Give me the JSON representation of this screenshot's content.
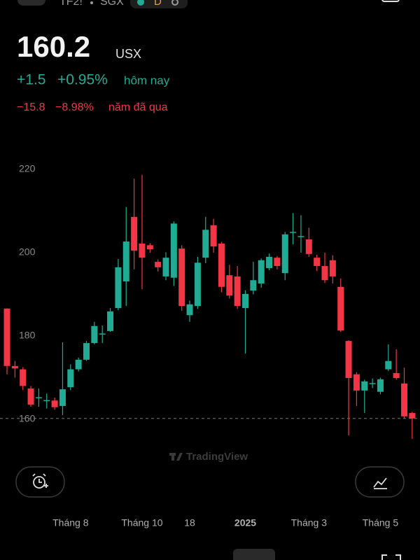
{
  "header": {
    "symbol": "TF2!",
    "exchange": "SGX",
    "interval": "D",
    "price": 160.2,
    "currency": "USX",
    "change_today": "+1.5",
    "change_today_pct": "+0.95%",
    "today_label": "hôm nay",
    "change_year": "−15.8",
    "change_year_pct": "−8.98%",
    "year_label": "năm đã qua"
  },
  "watermark": "TradingView",
  "chart_data": {
    "type": "candlestick",
    "categories": [
      null,
      null,
      null,
      null,
      null,
      null,
      null,
      null,
      "Tháng 8",
      null,
      null,
      null,
      null,
      null,
      null,
      null,
      null,
      "Tháng 10",
      null,
      null,
      null,
      null,
      null,
      "18",
      null,
      null,
      null,
      null,
      null,
      null,
      "2025",
      null,
      null,
      null,
      null,
      null,
      null,
      null,
      "Tháng 3",
      null,
      null,
      null,
      null,
      null,
      null,
      null,
      null,
      "Tháng 5",
      null,
      null,
      null,
      null
    ],
    "open": [
      186.6,
      172.8,
      172,
      167.4,
      165.2,
      164.6,
      164.5,
      163.2,
      167.7,
      172,
      174.3,
      178.3,
      180.5,
      181.2,
      186.7,
      193.1,
      208.6,
      202.2,
      201.8,
      197.8,
      194.3,
      194,
      201,
      185,
      187.2,
      198.8,
      206.6,
      202.2,
      194.6,
      194.3,
      186.7,
      190.9,
      192.6,
      196.3,
      198.8,
      195.1,
      204.9,
      204,
      203.2,
      198.8,
      196.8,
      198.2,
      191.8,
      178.8,
      170.8,
      166.9,
      168.6,
      166.6,
      172,
      171.1,
      168.6,
      161.5
    ],
    "high": [
      186.6,
      174,
      172.5,
      168,
      167.4,
      166.2,
      165.2,
      178.5,
      173.2,
      174.8,
      178.8,
      183.4,
      182.5,
      186.7,
      198.5,
      211,
      217.8,
      218.7,
      202.3,
      198.4,
      200.1,
      207.5,
      201.8,
      188.5,
      199,
      208.6,
      208.1,
      202.6,
      197.1,
      196.8,
      191,
      197.8,
      198.6,
      199.8,
      199.2,
      205,
      209.5,
      209,
      206,
      199.5,
      200,
      199.4,
      193.8,
      179,
      171.3,
      169.5,
      169.8,
      170,
      178,
      176.8,
      172.4,
      161.8
    ],
    "low": [
      170.8,
      170,
      167,
      163,
      163,
      162.6,
      162.3,
      161,
      167,
      171.5,
      174,
      178,
      178.3,
      181,
      186.2,
      187.2,
      196,
      191.2,
      200,
      195.5,
      193.4,
      192,
      186,
      183.4,
      186.5,
      197.5,
      200,
      190.5,
      189,
      186.5,
      175.8,
      190,
      191.6,
      195.8,
      196,
      193.4,
      202,
      200,
      199,
      195.6,
      192.7,
      192.6,
      181,
      156.1,
      163.2,
      161.5,
      167.5,
      166,
      171.6,
      169.5,
      160.2,
      155.3
    ],
    "close": [
      172.8,
      172.2,
      168,
      163.5,
      165.3,
      164.6,
      162.9,
      167.2,
      172,
      174.3,
      178.3,
      182.4,
      180.6,
      185.9,
      196.5,
      202.7,
      200.5,
      198.8,
      200.8,
      196.5,
      198.8,
      207,
      187.2,
      187.6,
      197.6,
      205.5,
      201.5,
      191.8,
      189.7,
      187.2,
      190.1,
      193.4,
      198.2,
      199,
      196.8,
      204.4,
      205,
      204,
      199.7,
      196.8,
      193.4,
      194.3,
      181.3,
      169.9,
      166.9,
      169.1,
      168.7,
      169.6,
      174,
      169.9,
      160.7,
      160.2
    ],
    "up_color": "#22ab94",
    "down_color": "#f23645",
    "ylim": [
      153,
      227
    ],
    "yticks": [
      160,
      180,
      200,
      220
    ],
    "grid": false
  }
}
